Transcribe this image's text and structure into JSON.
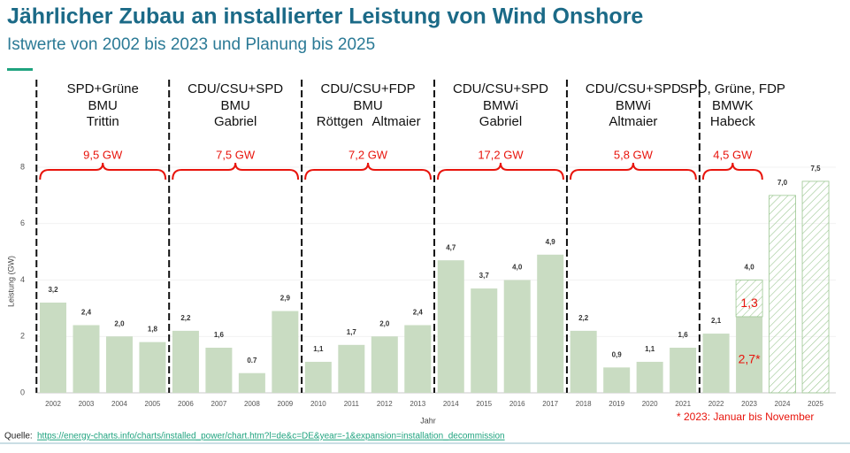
{
  "chart_data": {
    "type": "bar",
    "title": "Jährlicher Zubau an installierter Leistung von Wind Onshore",
    "subtitle": "Istwerte von 2002 bis 2023 und Planung bis 2025",
    "y_label": "Leistung (GW)",
    "x_label": "Jahr",
    "categories": [
      "2002",
      "2003",
      "2004",
      "2005",
      "2006",
      "2007",
      "2008",
      "2009",
      "2010",
      "2011",
      "2012",
      "2013",
      "2014",
      "2015",
      "2016",
      "2017",
      "2018",
      "2019",
      "2020",
      "2021",
      "2022",
      "2023",
      "2024",
      "2025"
    ],
    "series": [
      {
        "color": "#c9dcc2",
        "pattern": "solid",
        "values": [
          3.2,
          2.4,
          2.0,
          1.8,
          2.2,
          1.6,
          0.7,
          2.9,
          1.1,
          1.7,
          2.0,
          2.4,
          4.7,
          3.7,
          4.0,
          4.9,
          2.2,
          0.9,
          1.1,
          1.6,
          2.1,
          2.7,
          null,
          null
        ],
        "value_labels": [
          "3,2",
          "2,4",
          "2,0",
          "1,8",
          "2,2",
          "1,6",
          "0.7",
          "2,9",
          "1,1",
          "1,7",
          "2,0",
          "2,4",
          "4,7",
          "3,7",
          "4,0",
          "4,9",
          "2,2",
          "0,9",
          "1,1",
          "1,6",
          "2,1",
          "2,7*",
          null,
          null
        ]
      },
      {
        "color": "#9cc792",
        "pattern": "hatched",
        "values": [
          null,
          null,
          null,
          null,
          null,
          null,
          null,
          null,
          null,
          null,
          null,
          null,
          null,
          null,
          null,
          null,
          null,
          null,
          null,
          null,
          null,
          1.3,
          7.0,
          7.5
        ],
        "value_labels": [
          null,
          null,
          null,
          null,
          null,
          null,
          null,
          null,
          null,
          null,
          null,
          null,
          null,
          null,
          null,
          null,
          null,
          null,
          null,
          null,
          null,
          "1,3",
          "7,0",
          "7,5"
        ]
      }
    ],
    "stack_labels": [
      null,
      null,
      null,
      null,
      null,
      null,
      null,
      null,
      null,
      null,
      null,
      null,
      null,
      null,
      null,
      null,
      null,
      null,
      null,
      null,
      null,
      {
        "value": 4.0,
        "label": "4,0"
      },
      null,
      null
    ],
    "inner_label_color": "#e8140c",
    "ylim": [
      0,
      8
    ],
    "yticks": [
      0,
      2,
      4,
      6,
      8
    ],
    "grid": true
  },
  "periods": [
    {
      "coalition": "SPD+Grüne",
      "ministry": "BMU",
      "minister": [
        "Trittin"
      ],
      "added": "9,5 GW"
    },
    {
      "coalition": "CDU/CSU+SPD",
      "ministry": "BMU",
      "minister": [
        "Gabriel"
      ],
      "added": "7,5 GW"
    },
    {
      "coalition": "CDU/CSU+FDP",
      "ministry": "BMU",
      "minister": [
        "Röttgen",
        "Altmaier"
      ],
      "added": "7,2 GW"
    },
    {
      "coalition": "CDU/CSU+SPD",
      "ministry": "BMWi",
      "minister": [
        "Gabriel"
      ],
      "added": "17,2 GW"
    },
    {
      "coalition": "CDU/CSU+SPD",
      "ministry": "BMWi",
      "minister": [
        "Altmaier"
      ],
      "added": "5,8 GW"
    },
    {
      "coalition": "SPD, Grüne, FDP",
      "ministry": "BMWK",
      "minister": [
        "Habeck"
      ],
      "added": "4,5 GW"
    }
  ],
  "footnote": "* 2023: Januar bis November",
  "source": {
    "prefix": "Quelle:",
    "link": "https://energy-charts.info/charts/installed_power/chart.htm?l=de&c=DE&year=-1&expansion=installation_decommission"
  }
}
